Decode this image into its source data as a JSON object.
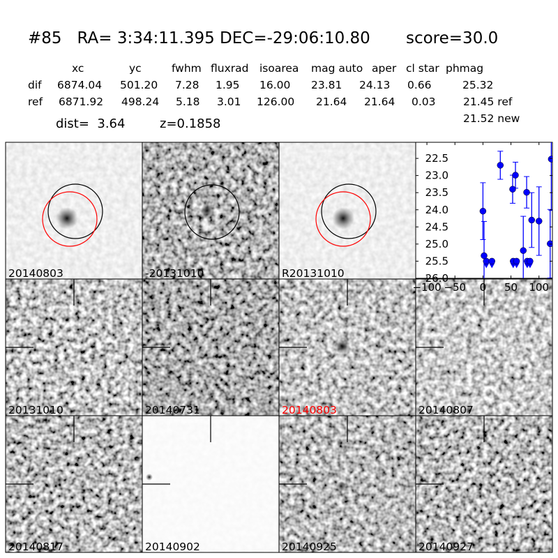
{
  "title": {
    "id": "#85",
    "ra": "RA= 3:34:11.395",
    "dec": "DEC=-29:06:10.80",
    "score": "score=30.0"
  },
  "table": {
    "columns": [
      "xc",
      "yc",
      "fwhm",
      "fluxrad",
      "isoarea",
      "mag auto",
      "aper",
      "cl star",
      "phmag"
    ],
    "rows": [
      {
        "name": "dif",
        "values": [
          "6874.04",
          "501.20",
          "7.28",
          "1.95",
          "16.00",
          "23.81",
          "24.13",
          "0.66",
          "25.32"
        ]
      },
      {
        "name": "ref",
        "values": [
          "6871.92",
          "498.24",
          "5.18",
          "3.01",
          "126.00",
          "21.64",
          "21.64",
          "0.03",
          "21.45 ref"
        ]
      }
    ],
    "extra": "21.52 new",
    "dist": "dist=  3.64",
    "z": "z=0.1858"
  },
  "panels": [
    {
      "label": "20140803",
      "color": "#000000"
    },
    {
      "label": "-20131010",
      "color": "#000000"
    },
    {
      "label": "R20131010",
      "color": "#000000"
    },
    {
      "label": "20131010",
      "color": "#000000"
    },
    {
      "label": "20140731",
      "color": "#000000"
    },
    {
      "label": "20140803",
      "color": "#ff0000"
    },
    {
      "label": "20140807",
      "color": "#000000"
    },
    {
      "label": "20140817",
      "color": "#000000"
    },
    {
      "label": "20140902",
      "color": "#000000"
    },
    {
      "label": "20140925",
      "color": "#000000"
    },
    {
      "label": "20140927",
      "color": "#000000"
    }
  ],
  "chart_data": {
    "type": "scatter",
    "xlim": [
      -120,
      124
    ],
    "ylim": [
      26.0,
      22.03
    ],
    "y_inverted": true,
    "xticks": [
      "−100",
      "−50",
      "0",
      "50",
      "100"
    ],
    "xtick_values": [
      -100,
      -50,
      0,
      50,
      100
    ],
    "yticks": [
      "22.5",
      "23.0",
      "23.5",
      "24.0",
      "24.5",
      "25.0",
      "25.5",
      "26.0"
    ],
    "ytick_values": [
      22.5,
      23.0,
      23.5,
      24.0,
      24.5,
      25.0,
      25.5,
      26.0
    ],
    "color": "#0000ff",
    "detections": [
      {
        "x": 0,
        "y": 24.04,
        "err": 0.83
      },
      {
        "x": 2,
        "y": 25.34,
        "err": 1.0
      },
      {
        "x": 31,
        "y": 22.7,
        "err": 0.41
      },
      {
        "x": 53,
        "y": 23.4,
        "err": 0.41
      },
      {
        "x": 58,
        "y": 22.99,
        "err": 0.38
      },
      {
        "x": 72,
        "y": 25.19,
        "err": 1.0
      },
      {
        "x": 78,
        "y": 23.49,
        "err": 0.46
      },
      {
        "x": 87,
        "y": 24.3,
        "err": 0.8
      },
      {
        "x": 100,
        "y": 24.33,
        "err": 1.0
      },
      {
        "x": 120,
        "y": 24.99,
        "err": 1.0
      },
      {
        "x": 122,
        "y": 22.52,
        "err": 1.5
      }
    ],
    "upper_limits": [
      {
        "x": 6,
        "y": 25.5
      },
      {
        "x": 16,
        "y": 25.5
      },
      {
        "x": 54,
        "y": 25.5
      },
      {
        "x": 60,
        "y": 25.5
      },
      {
        "x": 79,
        "y": 25.5
      },
      {
        "x": 84,
        "y": 25.5
      }
    ]
  }
}
